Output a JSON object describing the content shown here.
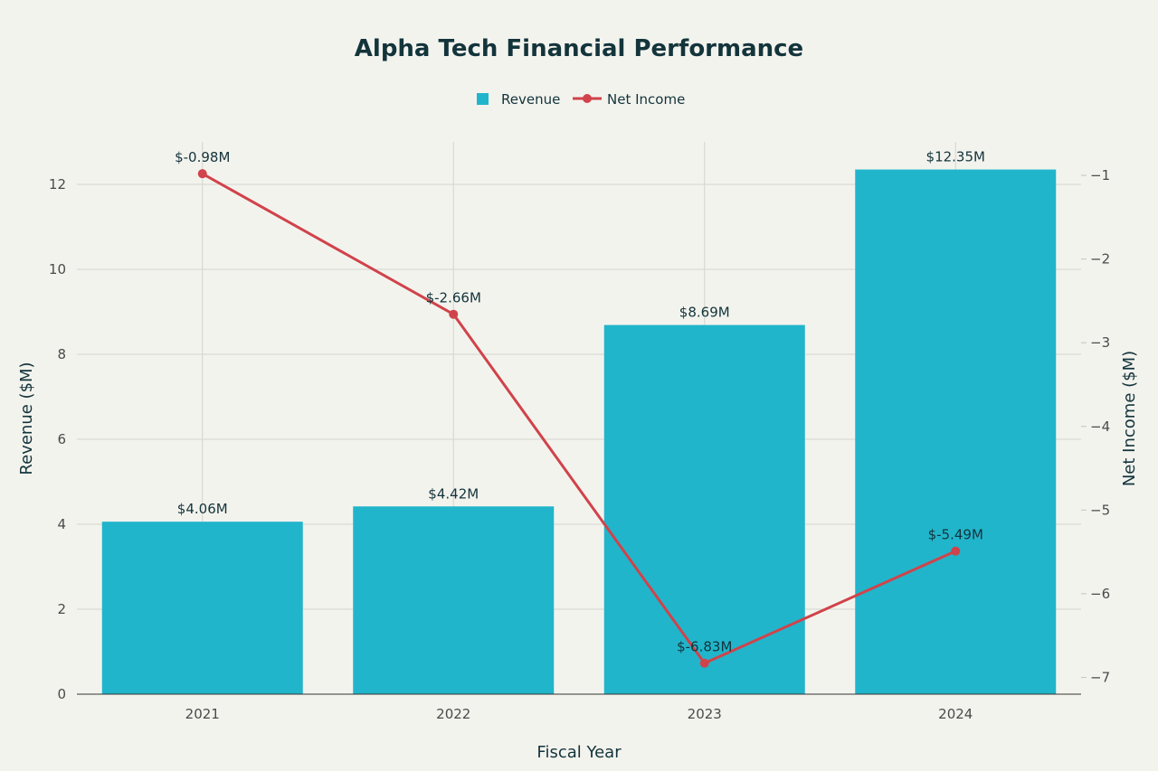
{
  "chart_data": {
    "type": "bar",
    "title": "Alpha Tech Financial Performance",
    "categories": [
      "2021",
      "2022",
      "2023",
      "2024"
    ],
    "series": [
      {
        "name": "Revenue",
        "type": "bar",
        "axis": "left",
        "color": "#21b5cb",
        "values": [
          4.06,
          4.42,
          8.69,
          12.35
        ],
        "labels": [
          "$4.06M",
          "$4.42M",
          "$8.69M",
          "$12.35M"
        ]
      },
      {
        "name": "Net Income",
        "type": "line",
        "axis": "right",
        "color": "#d0434a",
        "values": [
          -0.98,
          -2.66,
          -6.83,
          -5.49
        ],
        "labels": [
          "$-0.98M",
          "$-2.66M",
          "$-6.83M",
          "$-5.49M"
        ]
      }
    ],
    "xlabel": "Fiscal Year",
    "ylabel": "Revenue ($M)",
    "y2label": "Net Income ($M)",
    "ylim": [
      0,
      13
    ],
    "y2lim": [
      -7.2,
      -0.6
    ],
    "yticks": [
      0,
      2,
      4,
      6,
      8,
      10,
      12
    ],
    "y2ticks": [
      -7,
      -6,
      -5,
      -4,
      -3,
      -2,
      -1
    ],
    "legend_position": "top-center",
    "grid": true
  }
}
